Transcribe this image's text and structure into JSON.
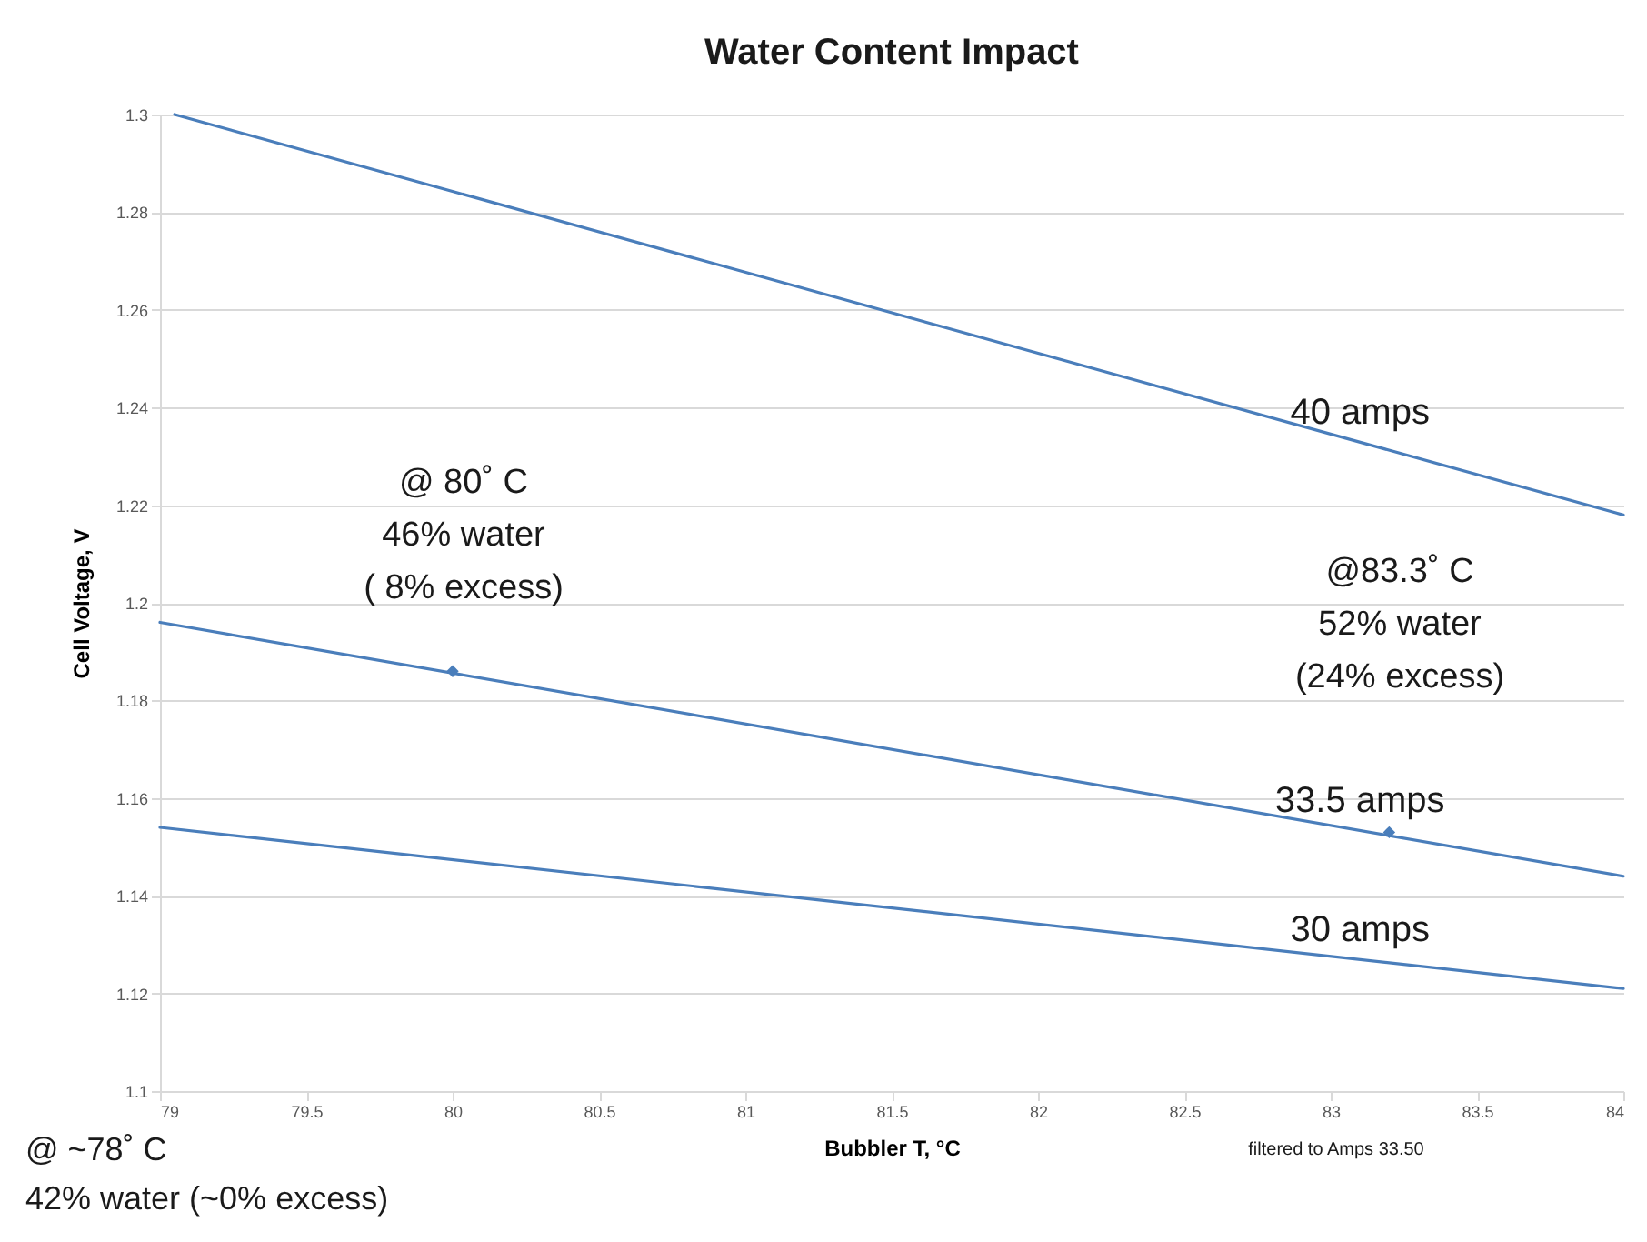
{
  "chart_data": {
    "type": "line",
    "title": "Water Content Impact",
    "xlabel": "Bubbler T, °C",
    "ylabel": "Cell Voltage, V",
    "xlim": [
      79,
      84
    ],
    "xticks": [
      79,
      79.5,
      80,
      80.5,
      81,
      81.5,
      82,
      82.5,
      83,
      83.5,
      84
    ],
    "ylim": [
      1.1,
      1.3
    ],
    "yticks": [
      1.1,
      1.12,
      1.14,
      1.16,
      1.18,
      1.2,
      1.22,
      1.24,
      1.26,
      1.28,
      1.3
    ],
    "grid": "y",
    "series": [
      {
        "name": "40 amps",
        "color": "#4a7ebb",
        "x": [
          79.05,
          84
        ],
        "values": [
          1.3,
          1.218
        ]
      },
      {
        "name": "33.5 amps",
        "color": "#4a7ebb",
        "x": [
          79,
          84
        ],
        "values": [
          1.196,
          1.144
        ]
      },
      {
        "type": "scatter",
        "marker": "diamond",
        "color": "#4a7ebb",
        "x": [
          80,
          83.2
        ],
        "values": [
          1.186,
          1.153
        ]
      },
      {
        "name": "30 amps",
        "color": "#4a7ebb",
        "x": [
          79,
          84
        ],
        "values": [
          1.154,
          1.121
        ]
      }
    ],
    "annotations": [
      "@ 80˚ C\n46% water\n( 8% excess)",
      "@83.3˚ C\n52% water\n(24% excess)",
      "@ ~78˚ C\n42% water (~0% excess)",
      "filtered to Amps   33.50"
    ]
  }
}
